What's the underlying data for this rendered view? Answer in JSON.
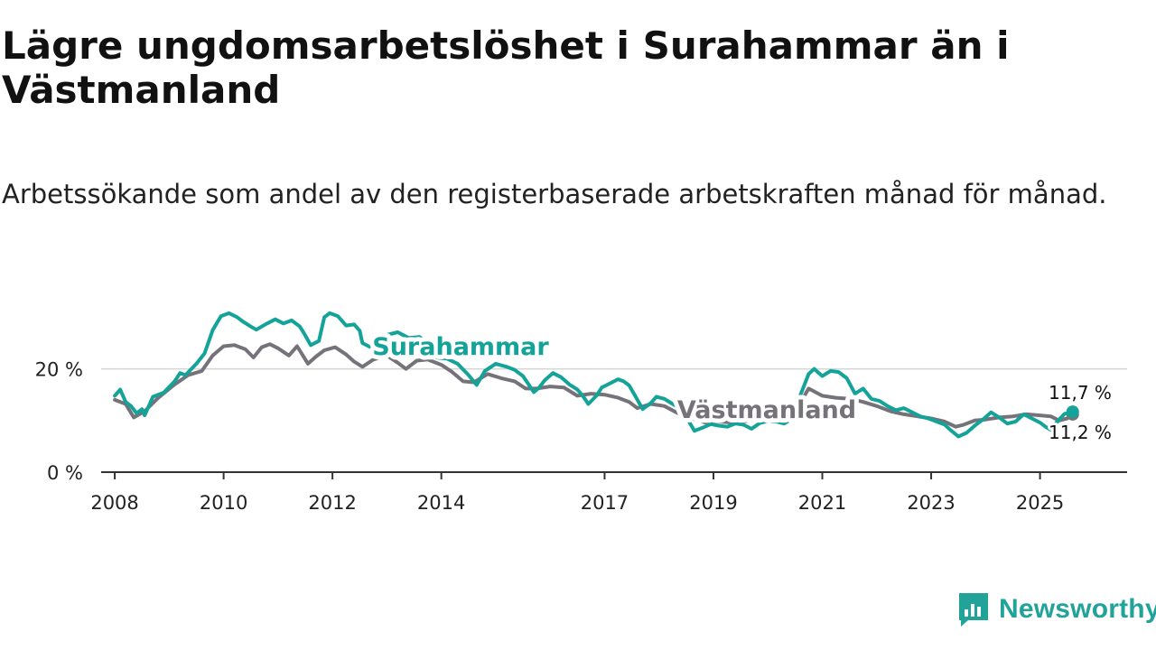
{
  "title": "Lägre ungdomsarbetslöshet i Surahammar än i Västmanland",
  "subtitle": "Arbetssökande som andel av den registerbaserade arbetskraften månad för månad.",
  "logo_text": "Newsworthy",
  "colors": {
    "surahammar": "#14a399",
    "vastmanland": "#76727a",
    "axis": "#333333",
    "grid": "#d4d4d4"
  },
  "chart_data": {
    "type": "line",
    "title": "Lägre ungdomsarbetslöshet i Surahammar än i Västmanland",
    "ylabel": "",
    "xlabel": "",
    "xlim": [
      2007.75,
      2026.6
    ],
    "ylim": [
      0,
      32
    ],
    "y_ticks": [
      0,
      20
    ],
    "y_tick_labels": [
      "0 %",
      "20 %"
    ],
    "x_ticks": [
      2008,
      2010,
      2012,
      2014,
      2017,
      2019,
      2021,
      2023,
      2025
    ],
    "x_tick_labels": [
      "2008",
      "2010",
      "2012",
      "2014",
      "2017",
      "2019",
      "2021",
      "2023",
      "2025"
    ],
    "series": [
      {
        "name": "Surahammar",
        "label": "Surahammar",
        "end_label": "11,7 %",
        "points": [
          [
            2008.0,
            14.8
          ],
          [
            2008.1,
            16.0
          ],
          [
            2008.2,
            13.6
          ],
          [
            2008.3,
            12.8
          ],
          [
            2008.4,
            11.4
          ],
          [
            2008.5,
            12.2
          ],
          [
            2008.55,
            11.0
          ],
          [
            2008.7,
            14.6
          ],
          [
            2008.9,
            15.4
          ],
          [
            2009.1,
            17.6
          ],
          [
            2009.2,
            19.2
          ],
          [
            2009.3,
            18.8
          ],
          [
            2009.5,
            21.0
          ],
          [
            2009.65,
            23.0
          ],
          [
            2009.8,
            27.5
          ],
          [
            2009.95,
            30.2
          ],
          [
            2010.1,
            30.8
          ],
          [
            2010.25,
            30.0
          ],
          [
            2010.35,
            29.2
          ],
          [
            2010.5,
            28.2
          ],
          [
            2010.6,
            27.6
          ],
          [
            2010.7,
            28.2
          ],
          [
            2010.8,
            28.8
          ],
          [
            2010.95,
            29.6
          ],
          [
            2011.1,
            28.8
          ],
          [
            2011.25,
            29.4
          ],
          [
            2011.4,
            28.2
          ],
          [
            2011.5,
            26.5
          ],
          [
            2011.6,
            24.6
          ],
          [
            2011.75,
            25.4
          ],
          [
            2011.85,
            30.0
          ],
          [
            2011.95,
            30.8
          ],
          [
            2012.1,
            30.2
          ],
          [
            2012.25,
            28.4
          ],
          [
            2012.4,
            28.6
          ],
          [
            2012.5,
            27.4
          ],
          [
            2012.55,
            25.0
          ],
          [
            2012.7,
            24.2
          ],
          [
            2012.85,
            25.6
          ],
          [
            2013.0,
            26.6
          ],
          [
            2013.2,
            27.1
          ],
          [
            2013.4,
            26.0
          ],
          [
            2013.6,
            26.2
          ],
          [
            2013.8,
            24.2
          ],
          [
            2013.9,
            22.2
          ],
          [
            2014.1,
            22.0
          ],
          [
            2014.3,
            21.0
          ],
          [
            2014.5,
            18.8
          ],
          [
            2014.65,
            16.9
          ],
          [
            2014.8,
            19.6
          ],
          [
            2015.0,
            21.0
          ],
          [
            2015.2,
            20.4
          ],
          [
            2015.35,
            19.8
          ],
          [
            2015.5,
            18.6
          ],
          [
            2015.7,
            15.5
          ],
          [
            2015.8,
            16.4
          ],
          [
            2015.9,
            17.8
          ],
          [
            2016.05,
            19.2
          ],
          [
            2016.2,
            18.4
          ],
          [
            2016.35,
            17.0
          ],
          [
            2016.5,
            16.0
          ],
          [
            2016.6,
            14.8
          ],
          [
            2016.7,
            13.2
          ],
          [
            2016.85,
            14.8
          ],
          [
            2016.95,
            16.4
          ],
          [
            2017.1,
            17.2
          ],
          [
            2017.25,
            18.0
          ],
          [
            2017.35,
            17.6
          ],
          [
            2017.45,
            16.8
          ],
          [
            2017.55,
            15.0
          ],
          [
            2017.7,
            12.2
          ],
          [
            2017.85,
            13.4
          ],
          [
            2017.95,
            14.6
          ],
          [
            2018.1,
            14.2
          ],
          [
            2018.25,
            13.2
          ],
          [
            2018.35,
            12.6
          ],
          [
            2018.5,
            11.0
          ],
          [
            2018.55,
            9.8
          ],
          [
            2018.65,
            8.0
          ],
          [
            2018.8,
            8.6
          ],
          [
            2018.95,
            9.3
          ],
          [
            2019.1,
            9.0
          ],
          [
            2019.25,
            8.8
          ],
          [
            2019.4,
            9.4
          ],
          [
            2019.55,
            9.2
          ],
          [
            2019.7,
            8.4
          ],
          [
            2019.85,
            9.5
          ],
          [
            2020.0,
            9.9
          ],
          [
            2020.15,
            9.8
          ],
          [
            2020.3,
            9.4
          ],
          [
            2020.45,
            10.4
          ],
          [
            2020.6,
            15.0
          ],
          [
            2020.75,
            19.0
          ],
          [
            2020.85,
            20.0
          ],
          [
            2021.0,
            18.6
          ],
          [
            2021.15,
            19.6
          ],
          [
            2021.3,
            19.4
          ],
          [
            2021.45,
            18.2
          ],
          [
            2021.6,
            15.2
          ],
          [
            2021.75,
            16.2
          ],
          [
            2021.9,
            14.2
          ],
          [
            2022.05,
            13.8
          ],
          [
            2022.2,
            12.8
          ],
          [
            2022.35,
            12.0
          ],
          [
            2022.5,
            12.4
          ],
          [
            2022.65,
            11.6
          ],
          [
            2022.8,
            10.8
          ],
          [
            2022.95,
            10.4
          ],
          [
            2023.1,
            9.8
          ],
          [
            2023.25,
            9.2
          ],
          [
            2023.35,
            8.2
          ],
          [
            2023.5,
            6.9
          ],
          [
            2023.65,
            7.6
          ],
          [
            2023.8,
            9.0
          ],
          [
            2023.95,
            10.2
          ],
          [
            2024.1,
            11.6
          ],
          [
            2024.25,
            10.6
          ],
          [
            2024.4,
            9.4
          ],
          [
            2024.55,
            9.8
          ],
          [
            2024.7,
            11.2
          ],
          [
            2024.85,
            10.4
          ],
          [
            2025.0,
            9.6
          ],
          [
            2025.1,
            8.8
          ],
          [
            2025.2,
            8.2
          ],
          [
            2025.3,
            9.6
          ],
          [
            2025.45,
            11.3
          ],
          [
            2025.6,
            11.7
          ]
        ]
      },
      {
        "name": "Västmanland",
        "label": "Västmanland",
        "end_label": "11,2 %",
        "points": [
          [
            2008.0,
            14.0
          ],
          [
            2008.2,
            13.2
          ],
          [
            2008.35,
            10.6
          ],
          [
            2008.55,
            11.8
          ],
          [
            2008.8,
            14.4
          ],
          [
            2009.1,
            17.0
          ],
          [
            2009.35,
            18.8
          ],
          [
            2009.6,
            19.6
          ],
          [
            2009.8,
            22.6
          ],
          [
            2010.0,
            24.4
          ],
          [
            2010.2,
            24.6
          ],
          [
            2010.4,
            23.8
          ],
          [
            2010.55,
            22.2
          ],
          [
            2010.7,
            24.2
          ],
          [
            2010.85,
            24.8
          ],
          [
            2011.0,
            24.0
          ],
          [
            2011.2,
            22.6
          ],
          [
            2011.35,
            24.4
          ],
          [
            2011.55,
            21.0
          ],
          [
            2011.7,
            22.4
          ],
          [
            2011.85,
            23.6
          ],
          [
            2012.05,
            24.2
          ],
          [
            2012.25,
            22.8
          ],
          [
            2012.4,
            21.4
          ],
          [
            2012.55,
            20.4
          ],
          [
            2012.75,
            21.8
          ],
          [
            2013.0,
            22.6
          ],
          [
            2013.2,
            21.2
          ],
          [
            2013.35,
            20.0
          ],
          [
            2013.55,
            21.6
          ],
          [
            2013.75,
            21.8
          ],
          [
            2014.0,
            20.8
          ],
          [
            2014.2,
            19.4
          ],
          [
            2014.4,
            17.6
          ],
          [
            2014.6,
            17.4
          ],
          [
            2014.85,
            19.0
          ],
          [
            2015.1,
            18.2
          ],
          [
            2015.35,
            17.6
          ],
          [
            2015.55,
            16.2
          ],
          [
            2015.75,
            16.2
          ],
          [
            2016.0,
            16.6
          ],
          [
            2016.25,
            16.4
          ],
          [
            2016.5,
            14.8
          ],
          [
            2016.75,
            15.2
          ],
          [
            2017.0,
            15.0
          ],
          [
            2017.25,
            14.4
          ],
          [
            2017.45,
            13.6
          ],
          [
            2017.6,
            12.4
          ],
          [
            2017.85,
            13.2
          ],
          [
            2018.1,
            12.8
          ],
          [
            2018.35,
            11.4
          ],
          [
            2018.6,
            10.4
          ],
          [
            2018.85,
            9.6
          ],
          [
            2019.1,
            9.8
          ],
          [
            2019.35,
            9.6
          ],
          [
            2019.6,
            9.9
          ],
          [
            2019.85,
            10.2
          ],
          [
            2020.1,
            10.4
          ],
          [
            2020.35,
            10.1
          ],
          [
            2020.55,
            12.6
          ],
          [
            2020.75,
            16.2
          ],
          [
            2021.0,
            14.8
          ],
          [
            2021.25,
            14.4
          ],
          [
            2021.5,
            14.2
          ],
          [
            2021.75,
            13.6
          ],
          [
            2022.0,
            12.8
          ],
          [
            2022.25,
            11.8
          ],
          [
            2022.5,
            11.2
          ],
          [
            2022.75,
            10.8
          ],
          [
            2023.0,
            10.4
          ],
          [
            2023.25,
            9.8
          ],
          [
            2023.45,
            8.8
          ],
          [
            2023.6,
            9.2
          ],
          [
            2023.8,
            10.0
          ],
          [
            2024.0,
            10.2
          ],
          [
            2024.25,
            10.6
          ],
          [
            2024.5,
            10.8
          ],
          [
            2024.75,
            11.2
          ],
          [
            2025.0,
            11.0
          ],
          [
            2025.2,
            10.8
          ],
          [
            2025.35,
            10.0
          ],
          [
            2025.5,
            10.4
          ],
          [
            2025.6,
            11.2
          ]
        ]
      }
    ]
  }
}
